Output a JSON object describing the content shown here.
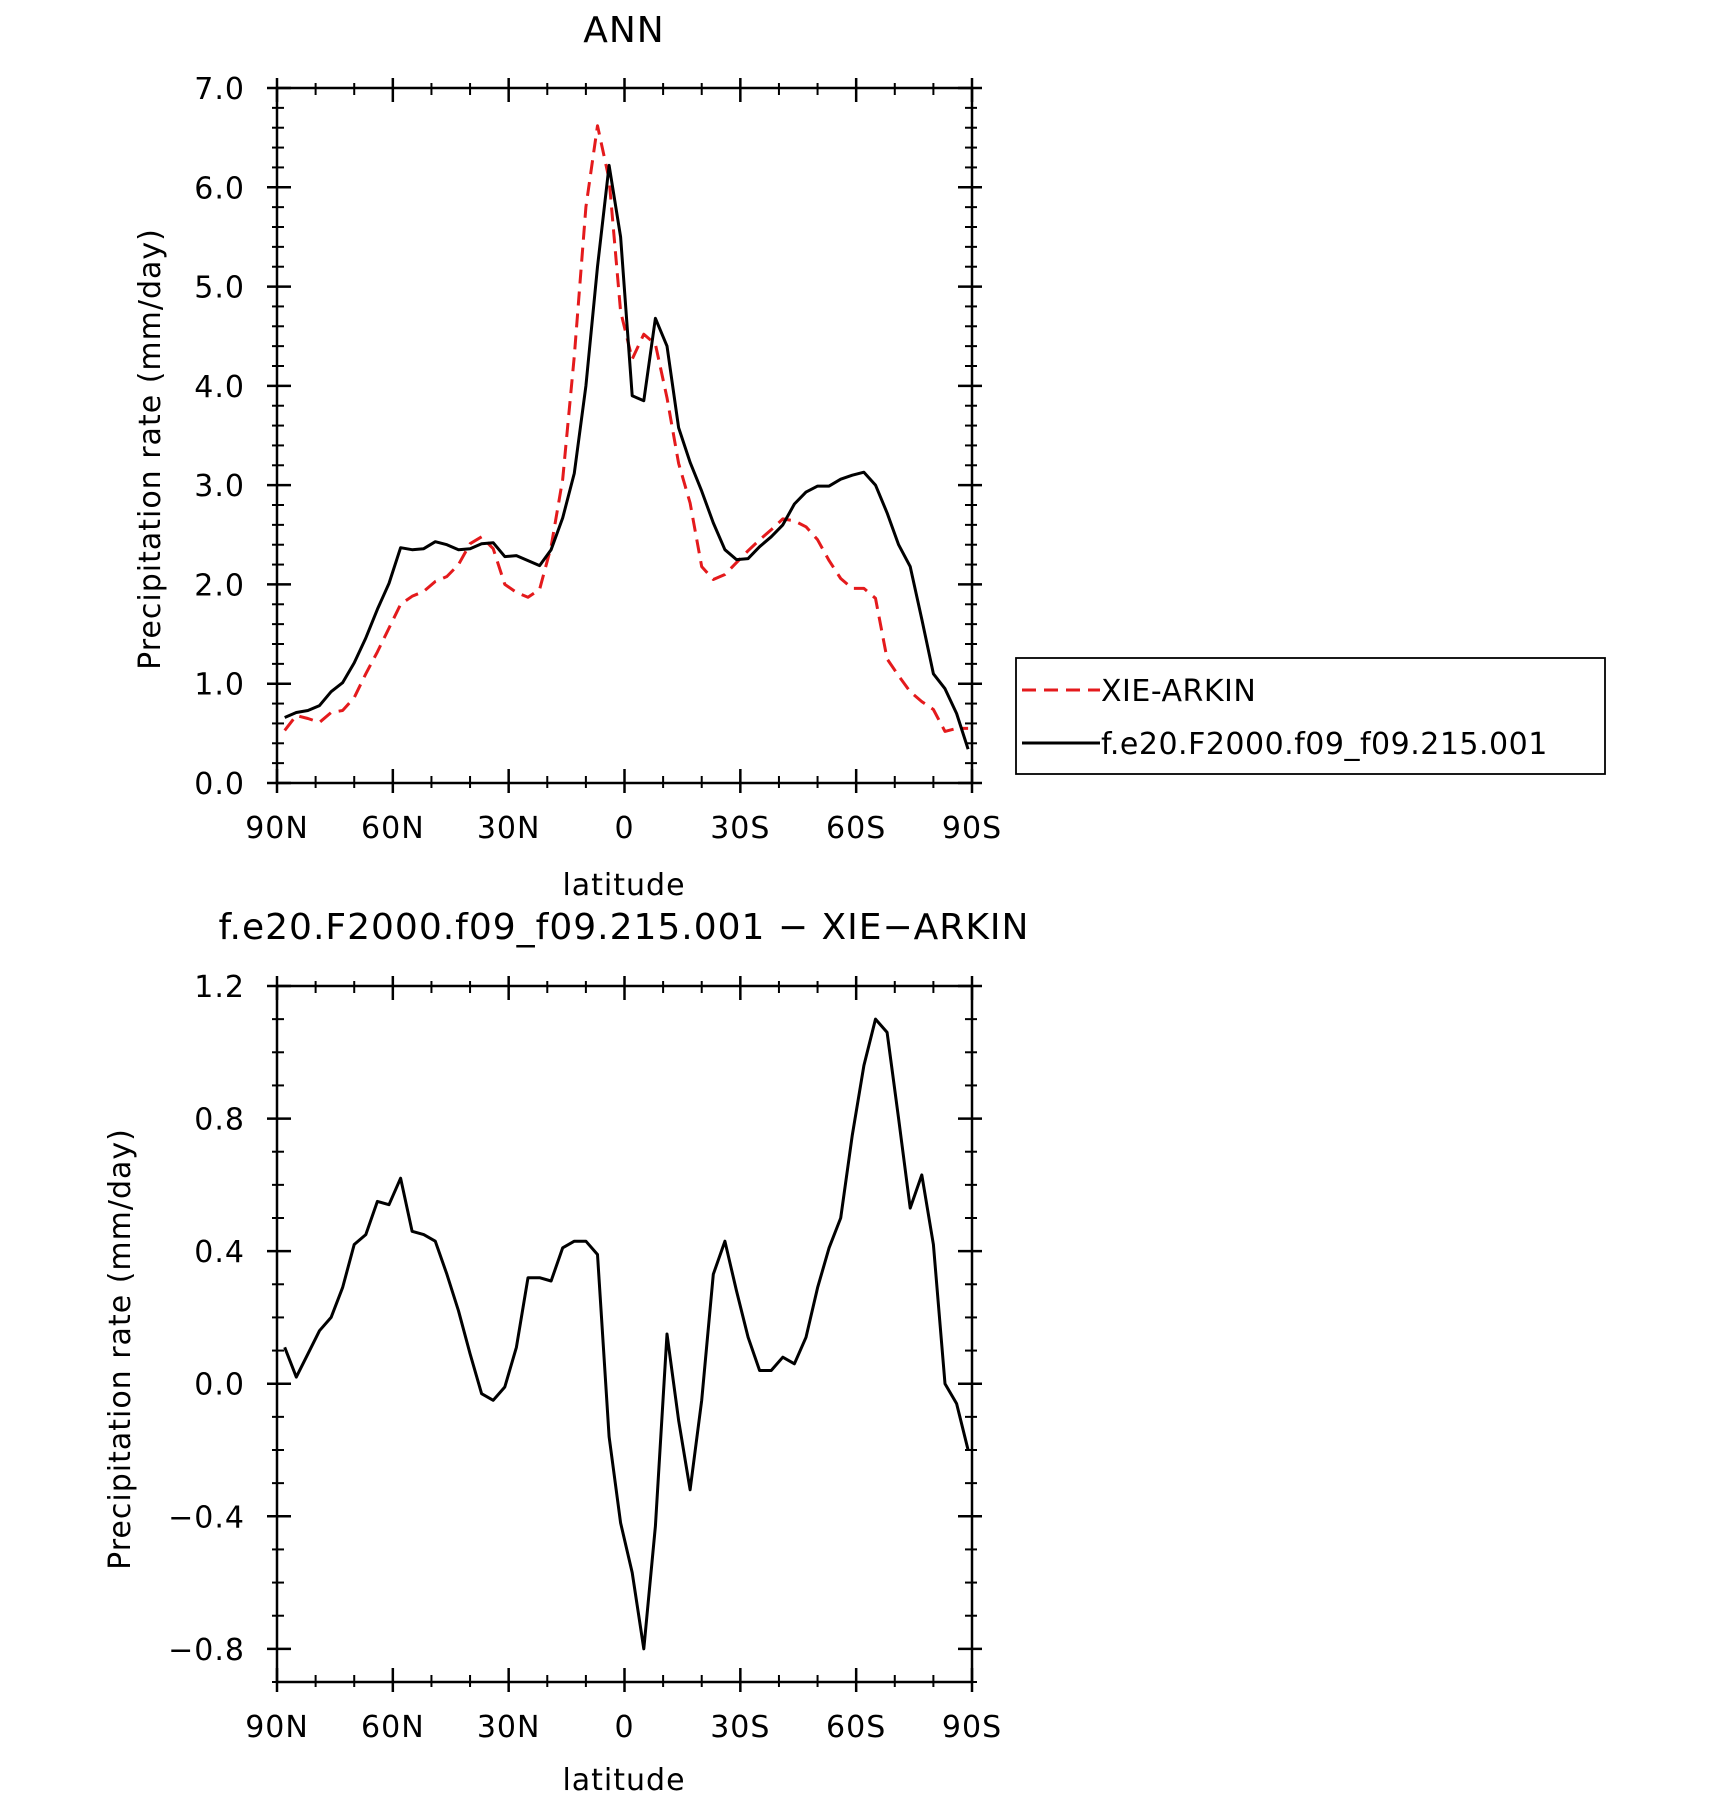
{
  "chart_data": [
    {
      "type": "line",
      "title": "ANN",
      "xlabel": "latitude",
      "ylabel": "Precipitation rate (mm/day)",
      "xlim": [
        90,
        -90
      ],
      "ylim": [
        0.0,
        7.0
      ],
      "x_ticks": [
        {
          "value": 90,
          "label": "90N"
        },
        {
          "value": 60,
          "label": "60N"
        },
        {
          "value": 30,
          "label": "30N"
        },
        {
          "value": 0,
          "label": "0"
        },
        {
          "value": -30,
          "label": "30S"
        },
        {
          "value": -60,
          "label": "60S"
        },
        {
          "value": -90,
          "label": "90S"
        }
      ],
      "y_ticks": [
        {
          "value": 0.0,
          "label": "0.0"
        },
        {
          "value": 1.0,
          "label": "1.0"
        },
        {
          "value": 2.0,
          "label": "2.0"
        },
        {
          "value": 3.0,
          "label": "3.0"
        },
        {
          "value": 4.0,
          "label": "4.0"
        },
        {
          "value": 5.0,
          "label": "5.0"
        },
        {
          "value": 6.0,
          "label": "6.0"
        },
        {
          "value": 7.0,
          "label": "7.0"
        }
      ],
      "legend": {
        "placement": "right"
      },
      "series": [
        {
          "name": "XIE-ARKIN",
          "color": "#e41a1c",
          "dash": "dashed",
          "x": [
            88,
            85,
            82,
            79,
            76,
            73,
            70,
            67,
            64,
            61,
            58,
            55,
            52,
            49,
            46,
            43,
            40,
            37,
            34,
            31,
            28,
            25,
            22,
            19,
            16,
            13,
            10,
            7,
            4,
            1,
            -2,
            -5,
            -8,
            -11,
            -14,
            -17,
            -20,
            -23,
            -26,
            -29,
            -32,
            -35,
            -38,
            -41,
            -44,
            -47,
            -50,
            -53,
            -56,
            -59,
            -62,
            -65,
            -68,
            -71,
            -74,
            -77,
            -80,
            -83,
            -86,
            -89
          ],
          "y": [
            0.53,
            0.68,
            0.65,
            0.61,
            0.71,
            0.73,
            0.86,
            1.1,
            1.32,
            1.56,
            1.8,
            1.88,
            1.93,
            2.03,
            2.08,
            2.2,
            2.41,
            2.48,
            2.36,
            2.0,
            1.92,
            1.87,
            1.95,
            2.38,
            3.06,
            4.3,
            5.8,
            6.62,
            6.08,
            4.75,
            4.27,
            4.52,
            4.42,
            3.88,
            3.22,
            2.82,
            2.18,
            2.05,
            2.1,
            2.22,
            2.34,
            2.45,
            2.55,
            2.66,
            2.64,
            2.58,
            2.45,
            2.24,
            2.06,
            1.96,
            1.96,
            1.86,
            1.25,
            1.08,
            0.92,
            0.82,
            0.74,
            0.52,
            0.55,
            0.55
          ]
        },
        {
          "name": "f.e20.F2000.f09_f09.215.001",
          "color": "#000000",
          "dash": "solid",
          "x": [
            88,
            85,
            82,
            79,
            76,
            73,
            70,
            67,
            64,
            61,
            58,
            55,
            52,
            49,
            46,
            43,
            40,
            37,
            34,
            31,
            28,
            25,
            22,
            19,
            16,
            13,
            10,
            7,
            4,
            1,
            -2,
            -5,
            -8,
            -11,
            -14,
            -17,
            -20,
            -23,
            -26,
            -29,
            -32,
            -35,
            -38,
            -41,
            -44,
            -47,
            -50,
            -53,
            -56,
            -59,
            -62,
            -65,
            -68,
            -71,
            -74,
            -77,
            -80,
            -83,
            -86,
            -89
          ],
          "y": [
            0.66,
            0.71,
            0.73,
            0.78,
            0.92,
            1.01,
            1.21,
            1.46,
            1.75,
            2.01,
            2.37,
            2.35,
            2.36,
            2.43,
            2.4,
            2.35,
            2.36,
            2.41,
            2.42,
            2.28,
            2.29,
            2.24,
            2.19,
            2.35,
            2.67,
            3.12,
            4.0,
            5.2,
            6.22,
            5.5,
            3.9,
            3.85,
            4.68,
            4.4,
            3.58,
            3.23,
            2.94,
            2.62,
            2.35,
            2.25,
            2.26,
            2.38,
            2.48,
            2.6,
            2.81,
            2.93,
            2.99,
            2.99,
            3.06,
            3.1,
            3.13,
            3.0,
            2.72,
            2.4,
            2.18,
            1.65,
            1.1,
            0.95,
            0.7,
            0.34
          ]
        }
      ]
    },
    {
      "type": "line",
      "title": "f.e20.F2000.f09_f09.215.001 − XIE−ARKIN",
      "xlabel": "latitude",
      "ylabel": "Precipitation rate (mm/day)",
      "xlim": [
        90,
        -90
      ],
      "ylim": [
        -0.9,
        1.2
      ],
      "x_ticks": [
        {
          "value": 90,
          "label": "90N"
        },
        {
          "value": 60,
          "label": "60N"
        },
        {
          "value": 30,
          "label": "30N"
        },
        {
          "value": 0,
          "label": "0"
        },
        {
          "value": -30,
          "label": "30S"
        },
        {
          "value": -60,
          "label": "60S"
        },
        {
          "value": -90,
          "label": "90S"
        }
      ],
      "y_ticks": [
        {
          "value": -0.8,
          "label": "−0.8"
        },
        {
          "value": -0.4,
          "label": "−0.4"
        },
        {
          "value": 0.0,
          "label": "0.0"
        },
        {
          "value": 0.4,
          "label": "0.4"
        },
        {
          "value": 0.8,
          "label": "0.8"
        },
        {
          "value": 1.2,
          "label": "1.2"
        }
      ],
      "series": [
        {
          "color": "#000000",
          "dash": "solid",
          "x": [
            88,
            85,
            82,
            79,
            76,
            73,
            70,
            67,
            64,
            61,
            58,
            55,
            52,
            49,
            46,
            43,
            40,
            37,
            34,
            31,
            28,
            25,
            22,
            19,
            16,
            13,
            10,
            7,
            4,
            1,
            -2,
            -5,
            -8,
            -11,
            -14,
            -17,
            -20,
            -23,
            -26,
            -29,
            -32,
            -35,
            -38,
            -41,
            -44,
            -47,
            -50,
            -53,
            -56,
            -59,
            -62,
            -65,
            -68,
            -71,
            -74,
            -77,
            -80,
            -83,
            -86,
            -89
          ],
          "y": [
            0.11,
            0.02,
            0.09,
            0.16,
            0.2,
            0.29,
            0.42,
            0.45,
            0.55,
            0.54,
            0.62,
            0.46,
            0.45,
            0.43,
            0.33,
            0.22,
            0.09,
            -0.03,
            -0.05,
            -0.01,
            0.11,
            0.32,
            0.32,
            0.31,
            0.41,
            0.43,
            0.43,
            0.39,
            -0.16,
            -0.42,
            -0.57,
            -0.8,
            -0.43,
            0.15,
            -0.11,
            -0.32,
            -0.05,
            0.33,
            0.43,
            0.28,
            0.14,
            0.04,
            0.04,
            0.08,
            0.06,
            0.14,
            0.29,
            0.41,
            0.5,
            0.75,
            0.96,
            1.1,
            1.06,
            0.8,
            0.53,
            0.63,
            0.42,
            0.0,
            -0.06,
            -0.2
          ]
        }
      ]
    }
  ]
}
